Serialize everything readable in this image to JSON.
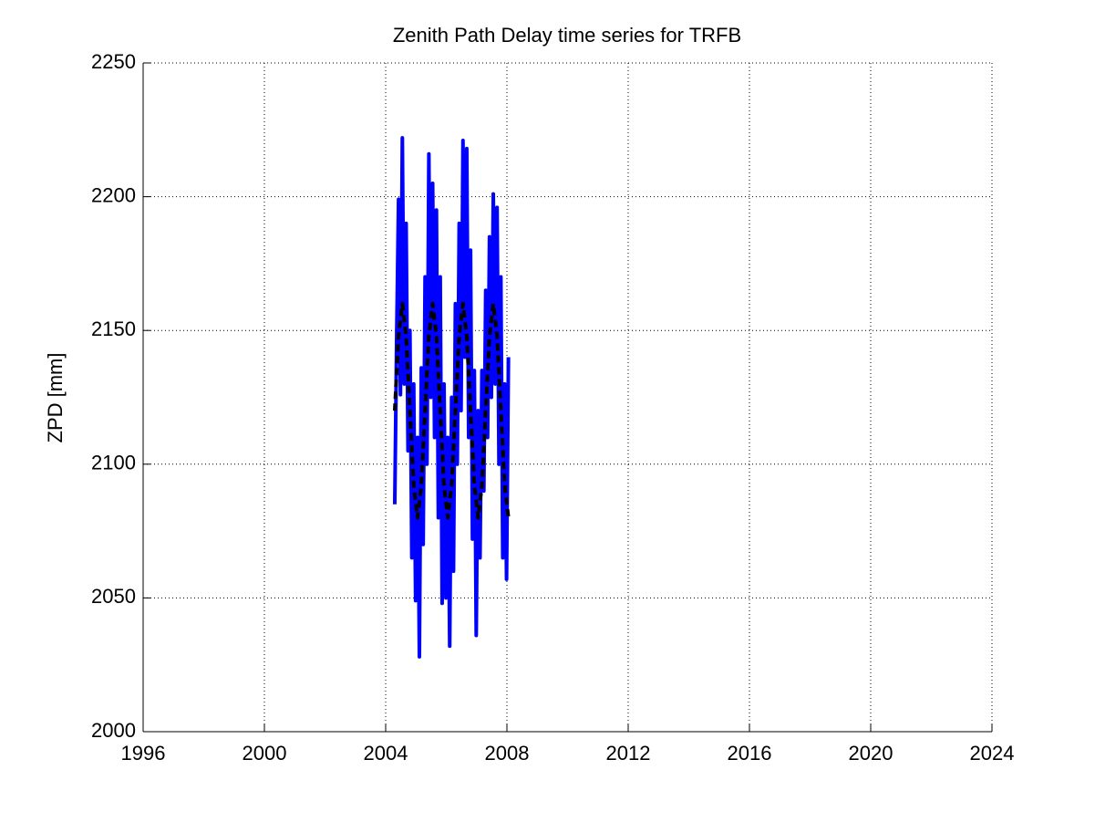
{
  "chart_data": {
    "type": "line",
    "title": "Zenith Path Delay time series for TRFB",
    "y_label": "ZPD [mm]",
    "xlim": [
      1996,
      2024
    ],
    "xticks": [
      1996,
      2000,
      2004,
      2008,
      2012,
      2016,
      2020,
      2024
    ],
    "ylim": [
      2000,
      2250
    ],
    "yticks": [
      2000,
      2050,
      2100,
      2150,
      2200,
      2250
    ],
    "grid": true,
    "series": [
      {
        "color": "#0000ff",
        "dash": false,
        "x": [
          2004.3,
          2004.3625,
          2004.425,
          2004.4875,
          2004.55,
          2004.6125,
          2004.675,
          2004.7375,
          2004.8,
          2004.8625,
          2004.925,
          2004.9875,
          2005.05,
          2005.1125,
          2005.175,
          2005.2375,
          2005.3,
          2005.3625,
          2005.425,
          2005.4875,
          2005.55,
          2005.6125,
          2005.675,
          2005.7375,
          2005.8,
          2005.8625,
          2005.925,
          2005.9875,
          2006.05,
          2006.1125,
          2006.175,
          2006.2375,
          2006.3,
          2006.3625,
          2006.425,
          2006.4875,
          2006.55,
          2006.6125,
          2006.675,
          2006.7375,
          2006.8,
          2006.8625,
          2006.925,
          2006.9875,
          2007.05,
          2007.1125,
          2007.175,
          2007.2375,
          2007.3,
          2007.3625,
          2007.425,
          2007.4875,
          2007.55,
          2007.6125,
          2007.675,
          2007.7375,
          2007.8,
          2007.8625,
          2007.925,
          2007.9875,
          2008.05
        ],
        "values": [
          2085,
          2147,
          2199,
          2126,
          2222,
          2130,
          2190,
          2105,
          2150,
          2065,
          2130,
          2049,
          2110,
          2028,
          2136,
          2070,
          2170,
          2100,
          2216,
          2125,
          2205,
          2110,
          2195,
          2080,
          2170,
          2048,
          2130,
          2050,
          2110,
          2032,
          2125,
          2060,
          2160,
          2100,
          2190,
          2120,
          2221,
          2140,
          2218,
          2110,
          2180,
          2072,
          2135,
          2036,
          2120,
          2065,
          2135,
          2090,
          2165,
          2110,
          2185,
          2125,
          2201,
          2130,
          2196,
          2100,
          2170,
          2065,
          2130,
          2057,
          2140
        ]
      },
      {
        "color": "#000000",
        "dash": true,
        "x": [
          2004.3,
          2004.425,
          2004.55,
          2004.675,
          2004.8,
          2004.925,
          2005.05,
          2005.175,
          2005.3,
          2005.425,
          2005.55,
          2005.675,
          2005.8,
          2005.925,
          2006.05,
          2006.175,
          2006.3,
          2006.425,
          2006.55,
          2006.675,
          2006.8,
          2006.925,
          2007.05,
          2007.175,
          2007.3,
          2007.425,
          2007.55,
          2007.675,
          2007.8,
          2007.925,
          2008.05
        ],
        "values": [
          2120,
          2148,
          2160,
          2148,
          2120,
          2092,
          2080,
          2092,
          2120,
          2148,
          2160,
          2148,
          2120,
          2092,
          2080,
          2092,
          2120,
          2148,
          2160,
          2148,
          2120,
          2092,
          2080,
          2092,
          2120,
          2148,
          2160,
          2148,
          2120,
          2092,
          2080
        ]
      }
    ]
  }
}
